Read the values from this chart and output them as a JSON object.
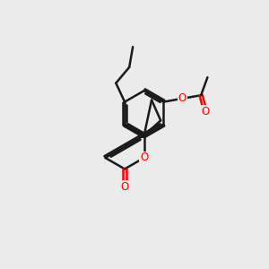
{
  "background_color": "#ebebeb",
  "bond_color": "#1a1a1a",
  "oxygen_color": "#ff0000",
  "line_width": 1.8,
  "figsize": [
    3.0,
    3.0
  ],
  "dpi": 100,
  "xlim": [
    0,
    10
  ],
  "ylim": [
    0,
    10
  ]
}
